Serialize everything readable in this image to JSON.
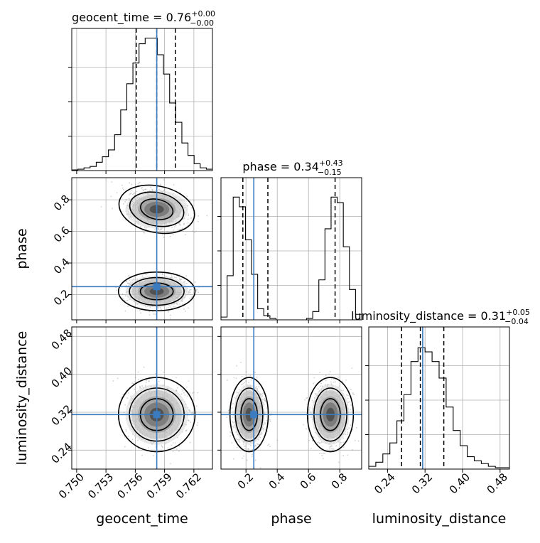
{
  "chart_data": {
    "type": "corner",
    "parameters": [
      "geocent_time",
      "phase",
      "luminosity_distance"
    ],
    "titles": {
      "geocent_time": {
        "name": "geocent_time",
        "value": "0.76",
        "plus": "+0.00",
        "minus": "−0.00"
      },
      "phase": {
        "name": "phase",
        "value": "0.34",
        "plus": "+0.43",
        "minus": "−0.15"
      },
      "luminosity_distance": {
        "name": "luminosity_distance",
        "value": "0.31",
        "plus": "+0.05",
        "minus": "−0.04"
      }
    },
    "axis_labels": {
      "geocent_time": "geocent_time",
      "phase": "phase",
      "luminosity_distance": "luminosity_distance"
    },
    "ranges": {
      "geocent_time": [
        0.7495,
        0.7639
      ],
      "phase": [
        0.04,
        0.94
      ],
      "luminosity_distance": [
        0.2,
        0.5
      ]
    },
    "ticks": {
      "geocent_time": [
        "0.750",
        "0.753",
        "0.756",
        "0.759",
        "0.762"
      ],
      "phase": [
        "0.2",
        "0.4",
        "0.6",
        "0.8"
      ],
      "luminosity_distance": [
        "0.24",
        "0.32",
        "0.40",
        "0.48"
      ]
    },
    "truth": {
      "geocent_time": 0.7582,
      "phase": 0.25,
      "luminosity_distance": 0.315
    },
    "quantiles": {
      "geocent_time": [
        0.7561,
        0.7582,
        0.7601
      ],
      "phase": [
        0.18,
        0.34,
        0.77
      ],
      "luminosity_distance": [
        0.27,
        0.31,
        0.36
      ]
    },
    "histograms": {
      "geocent_time": [
        0.005,
        0.01,
        0.02,
        0.03,
        0.06,
        0.1,
        0.15,
        0.26,
        0.44,
        0.63,
        0.78,
        0.92,
        0.96,
        0.96,
        0.84,
        0.7,
        0.49,
        0.35,
        0.2,
        0.11,
        0.05,
        0.02,
        0.01
      ],
      "phase": [
        0.02,
        0.32,
        0.89,
        0.82,
        0.58,
        0.33,
        0.08,
        0.03,
        0.01,
        0.0,
        0.0,
        0.0,
        0.0,
        0.0,
        0.01,
        0.06,
        0.29,
        0.66,
        0.89,
        0.85,
        0.53,
        0.22,
        0.04
      ],
      "luminosity_distance": [
        0.02,
        0.05,
        0.11,
        0.19,
        0.35,
        0.54,
        0.78,
        0.88,
        0.85,
        0.78,
        0.66,
        0.45,
        0.28,
        0.17,
        0.09,
        0.06,
        0.04,
        0.02,
        0.01,
        0.01
      ]
    },
    "modes": {
      "phase": [
        {
          "center": 0.74,
          "width": 0.06
        },
        {
          "center": 0.22,
          "width": 0.05
        }
      ],
      "luminosity_distance": [
        {
          "center": 0.315,
          "width": 0.032
        }
      ],
      "geocent_time": [
        {
          "center": 0.7582,
          "width": 0.0016
        }
      ]
    },
    "grid": true
  }
}
